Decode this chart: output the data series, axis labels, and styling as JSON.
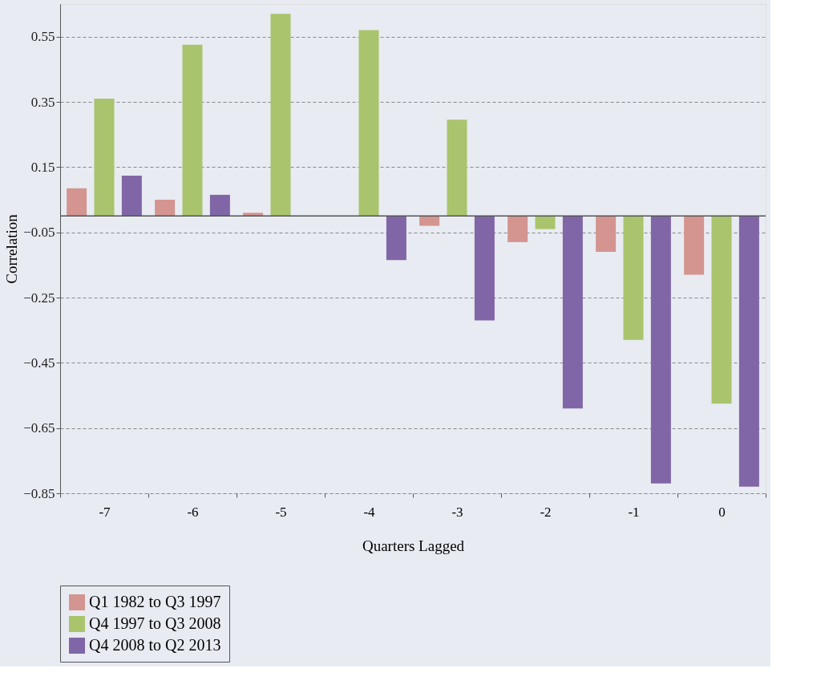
{
  "chart_data": {
    "type": "bar",
    "xlabel": "Quarters Lagged",
    "ylabel": "Correlation",
    "categories": [
      "-7",
      "-6",
      "-5",
      "-4",
      "-3",
      "-2",
      "-1",
      "0"
    ],
    "series": [
      {
        "name": "Q1 1982 to Q3 1997",
        "color": "#d49490",
        "values": [
          0.085,
          0.05,
          0.01,
          null,
          -0.03,
          -0.08,
          -0.11,
          -0.18
        ]
      },
      {
        "name": "Q4 1997 to Q3 2008",
        "color": "#a9c46c",
        "values": [
          0.36,
          0.525,
          0.62,
          0.57,
          0.295,
          -0.04,
          -0.38,
          -0.575
        ]
      },
      {
        "name": "Q4 2008 to Q2 2013",
        "color": "#8066a6",
        "values": [
          0.124,
          0.065,
          null,
          -0.135,
          -0.32,
          -0.59,
          -0.82,
          -0.83
        ]
      }
    ],
    "ylim": [
      -0.85,
      0.65
    ],
    "yticks": [
      -0.85,
      -0.65,
      -0.45,
      -0.25,
      -0.05,
      0.15,
      0.35,
      0.55
    ],
    "grid": "y",
    "legend": "bottom",
    "ref_lines": [
      {
        "axis": "y",
        "value": 0,
        "color": "#555555",
        "line_style": "solid"
      }
    ]
  }
}
